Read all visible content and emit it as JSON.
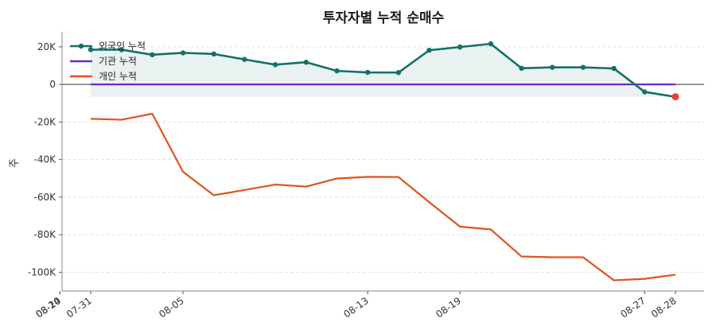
{
  "chart_data": {
    "type": "line",
    "title": "투자자별 누적 순매수",
    "xlabel": "",
    "ylabel": "주",
    "x": [
      "07-31",
      "08-01",
      "08-02",
      "08-05",
      "08-06",
      "08-07",
      "08-08",
      "08-09",
      "08-12",
      "08-13",
      "08-14",
      "08-16",
      "08-19",
      "08-20",
      "08-21",
      "08-22",
      "08-23",
      "08-26",
      "08-27",
      "08-28"
    ],
    "xticks": [
      "07-31",
      "08-05",
      "08-10",
      "08-13",
      "08-19",
      "08-24",
      "08-27",
      "08-28"
    ],
    "ylim": [
      -110000,
      28000
    ],
    "yticks": [
      20000,
      0,
      -20000,
      -40000,
      -60000,
      -80000,
      -100000
    ],
    "ytick_labels": [
      "20K",
      "0",
      "-20K",
      "-40K",
      "-60K",
      "-80K",
      "-100K"
    ],
    "grid": true,
    "legend": "top-left",
    "series": [
      {
        "name": "외국인 누적",
        "color": "#147068",
        "marker": true,
        "fill": true,
        "values": [
          18500,
          18500,
          15800,
          16800,
          16200,
          13300,
          10500,
          11800,
          7200,
          6400,
          6300,
          18200,
          19900,
          21600,
          8600,
          9100,
          9100,
          8500,
          -4000,
          -6600
        ]
      },
      {
        "name": "기관 누적",
        "color": "#6a2cc9",
        "marker": false,
        "fill": false,
        "values": [
          0,
          0,
          0,
          0,
          0,
          0,
          0,
          0,
          0,
          0,
          0,
          0,
          0,
          0,
          0,
          0,
          0,
          0,
          0,
          0
        ]
      },
      {
        "name": "개인 누적",
        "color": "#e0531d",
        "marker": false,
        "fill": false,
        "values": [
          -18300,
          -18800,
          -15600,
          -46500,
          -59000,
          -56200,
          -53300,
          -54400,
          -50100,
          -49200,
          -49300,
          -62700,
          -75700,
          -77200,
          -91600,
          -92000,
          -92000,
          -104300,
          -103500,
          -101300
        ]
      }
    ],
    "last_point_color": "#e84142"
  }
}
